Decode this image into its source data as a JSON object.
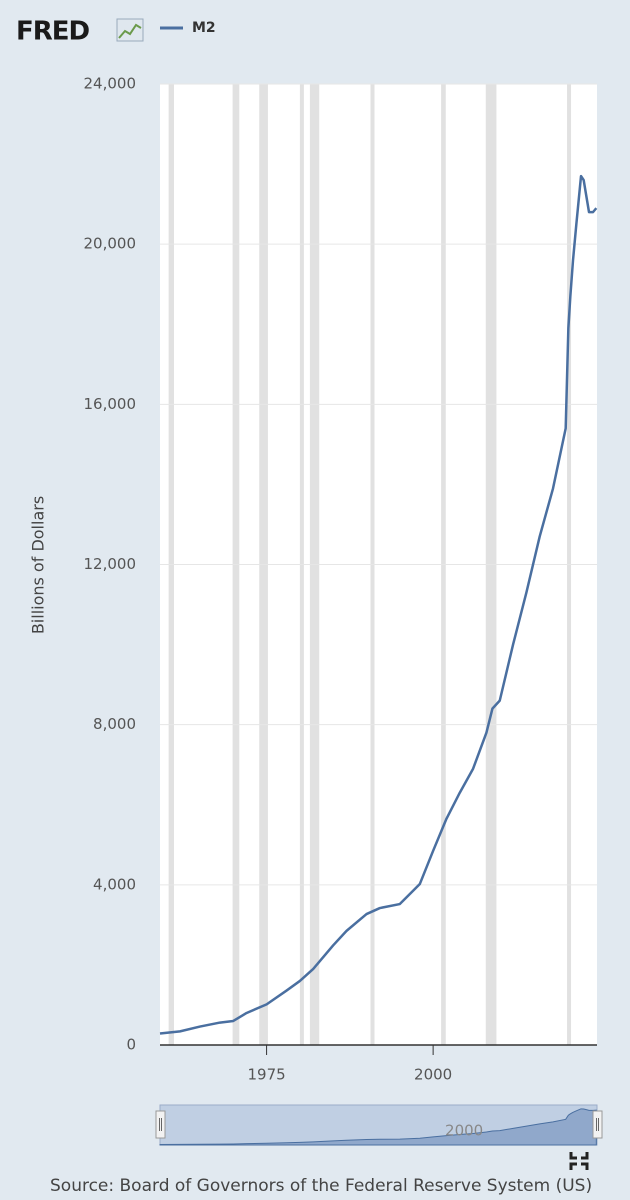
{
  "chart_data": {
    "type": "line",
    "logo": "FRED",
    "y_label": "Billions of Dollars",
    "source": "Source: Board of Governors of the Federal Reserve System (US)",
    "x": [
      1959,
      1962,
      1965,
      1968,
      1970,
      1972,
      1975,
      1978,
      1980,
      1982,
      1985,
      1987,
      1990,
      1992,
      1995,
      1998,
      2000,
      2002,
      2004,
      2006,
      2008,
      2008.9,
      2010,
      2012,
      2014,
      2016,
      2018,
      2019.9,
      2020.3,
      2020.6,
      2021,
      2021.5,
      2022.2,
      2022.6,
      2023,
      2023.4,
      2024,
      2024.5
    ],
    "series": [
      {
        "name": "M2",
        "color": "#4a6fa0",
        "values": [
          287,
          340,
          460,
          560,
          600,
          800,
          1015,
          1360,
          1600,
          1900,
          2490,
          2850,
          3270,
          3420,
          3520,
          4020,
          4850,
          5650,
          6300,
          6900,
          7800,
          8400,
          8600,
          10000,
          11300,
          12700,
          13900,
          15400,
          17900,
          18700,
          19600,
          20500,
          21700,
          21600,
          21200,
          20800,
          20800,
          20900
        ]
      }
    ],
    "recessions": [
      [
        1960.3,
        1961.1
      ],
      [
        1969.9,
        1970.9
      ],
      [
        1973.9,
        1975.2
      ],
      [
        1980,
        1980.5
      ],
      [
        1981.5,
        1982.9
      ],
      [
        1990.6,
        1991.2
      ],
      [
        2001.2,
        2001.9
      ],
      [
        2007.9,
        2009.5
      ],
      [
        2020.1,
        2020.3
      ]
    ],
    "xlim": [
      1959,
      2024.6
    ],
    "xticks": [
      1975,
      2000
    ],
    "ylim": [
      0,
      24000
    ],
    "yticks": [
      0,
      {
        "value": 4000,
        "label": "4,000"
      },
      {
        "value": 8000,
        "label": "8,000"
      },
      {
        "value": 12000,
        "label": "12,000"
      },
      {
        "value": 16000,
        "label": "16,000"
      },
      {
        "value": 20000,
        "label": "20,000"
      },
      {
        "value": 24000,
        "label": "24,000"
      }
    ],
    "grid": true
  }
}
